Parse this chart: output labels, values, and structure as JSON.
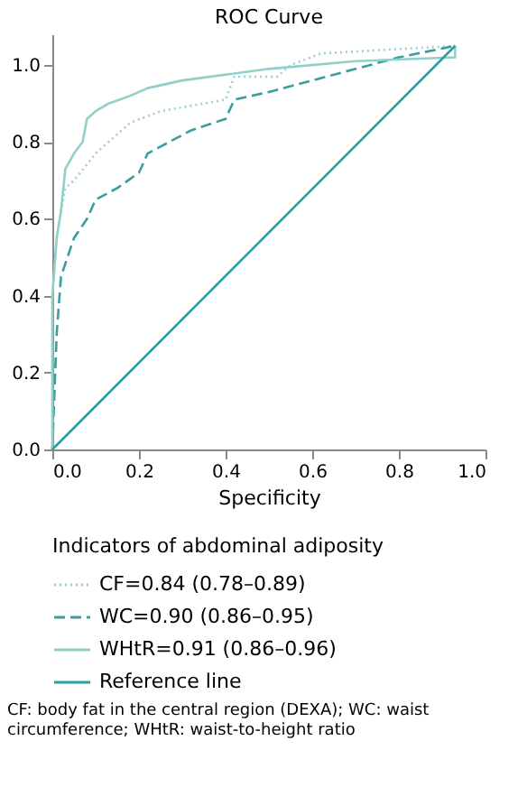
{
  "chart_data": {
    "type": "line",
    "title": "ROC Curve",
    "xlabel": "Specificity",
    "legend_title": "Indicators of abdominal adiposity",
    "xlim": [
      0,
      1.0
    ],
    "ylim": [
      0,
      1.08
    ],
    "xticks": [
      {
        "value": 0,
        "label": "0.0"
      },
      0.2,
      0.4,
      0.6,
      0.8,
      {
        "value": 1,
        "label": "1.0"
      }
    ],
    "yticks": [
      {
        "value": 0,
        "label": "0.0"
      },
      0.2,
      0.4,
      0.6,
      0.8,
      {
        "value": 1,
        "label": "1.0"
      }
    ],
    "grid": false,
    "legend": "bottom",
    "marker": "none",
    "series": [
      {
        "name": "CF=0.84 (0.78–0.89)",
        "color": "#9fcfcf",
        "line_style": "dotted",
        "x": [
          0,
          0.0,
          0.01,
          0.02,
          0.03,
          0.05,
          0.1,
          0.13,
          0.18,
          0.25,
          0.4,
          0.42,
          0.52,
          0.55,
          0.62,
          0.93
        ],
        "values": [
          0,
          0.4,
          0.55,
          0.62,
          0.68,
          0.7,
          0.77,
          0.8,
          0.85,
          0.88,
          0.91,
          0.97,
          0.97,
          1.0,
          1.03,
          1.05
        ]
      },
      {
        "name": "WC=0.90 (0.86–0.95)",
        "color": "#3a9e9e",
        "line_style": "dashed",
        "x": [
          0,
          0.01,
          0.02,
          0.05,
          0.08,
          0.1,
          0.15,
          0.2,
          0.22,
          0.27,
          0.32,
          0.4,
          0.42,
          0.5,
          0.6,
          0.7,
          0.8,
          0.93
        ],
        "values": [
          0,
          0.3,
          0.45,
          0.55,
          0.6,
          0.65,
          0.68,
          0.72,
          0.77,
          0.8,
          0.83,
          0.86,
          0.91,
          0.93,
          0.96,
          0.99,
          1.02,
          1.05
        ]
      },
      {
        "name": "WHtR=0.91 (0.86–0.96)",
        "color": "#8fd0c8",
        "line_style": "solid",
        "x": [
          0,
          0.0,
          0.01,
          0.02,
          0.03,
          0.05,
          0.07,
          0.08,
          0.1,
          0.13,
          0.18,
          0.22,
          0.3,
          0.5,
          0.7,
          0.93,
          0.93
        ],
        "values": [
          0,
          0.4,
          0.55,
          0.62,
          0.73,
          0.77,
          0.8,
          0.86,
          0.88,
          0.9,
          0.92,
          0.94,
          0.96,
          0.99,
          1.01,
          1.02,
          1.05
        ]
      },
      {
        "name": "Reference line",
        "color": "#2a9f9f",
        "line_style": "solid",
        "x": [
          0,
          0.93
        ],
        "values": [
          0,
          1.05
        ]
      }
    ],
    "annotations": [
      "CF: body fat in the central region (DEXA); WC: waist circumference; WHtR: waist-to-height ratio"
    ]
  }
}
